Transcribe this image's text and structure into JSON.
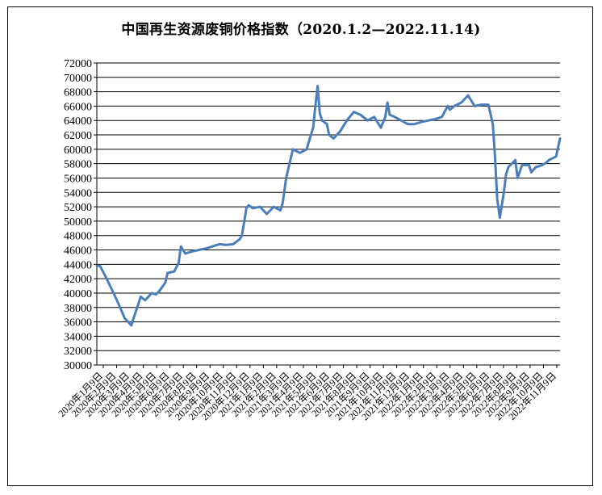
{
  "chart_data": {
    "type": "line",
    "title": "中国再生资源废铜价格指数（2020.1.2—2022.11.14)",
    "xlabel": "",
    "ylabel": "",
    "ylim": [
      30000,
      72000
    ],
    "yticks": [
      30000,
      32000,
      34000,
      36000,
      38000,
      40000,
      42000,
      44000,
      46000,
      48000,
      50000,
      52000,
      54000,
      56000,
      58000,
      60000,
      62000,
      64000,
      66000,
      68000,
      70000,
      72000
    ],
    "grid": true,
    "legend": "none",
    "line_color": "#4a7ebb",
    "x_tick_labels": [
      "2020年1月9日",
      "2020年2月9日",
      "2020年3月9日",
      "2020年4月9日",
      "2020年5月9日",
      "2020年6月9日",
      "2020年7月9日",
      "2020年8月9日",
      "2020年9月9日",
      "2020年10月9日",
      "2020年11月9日",
      "2020年12月9日",
      "2021年1月9日",
      "2021年2月9日",
      "2021年3月9日",
      "2021年4月9日",
      "2021年5月9日",
      "2021年6月9日",
      "2021年7月9日",
      "2021年8月9日",
      "2021年9月9日",
      "2021年10月9日",
      "2021年11月9日",
      "2021年12月9日",
      "2022年1月9日",
      "2022年2月9日",
      "2022年3月9日",
      "2022年4月9日",
      "2022年5月9日",
      "2022年6月9日",
      "2022年7月9日",
      "2022年8月9日",
      "2022年9月9日",
      "2022年10月9日",
      "2022年11月9日"
    ],
    "x": [
      "2020-01-02",
      "2020-01-09",
      "2020-01-20",
      "2020-02-05",
      "2020-02-20",
      "2020-03-05",
      "2020-03-20",
      "2020-03-25",
      "2020-04-05",
      "2020-04-10",
      "2020-04-20",
      "2020-05-05",
      "2020-05-15",
      "2020-05-25",
      "2020-06-05",
      "2020-06-10",
      "2020-06-25",
      "2020-07-05",
      "2020-07-10",
      "2020-07-15",
      "2020-07-20",
      "2020-08-05",
      "2020-08-20",
      "2020-09-05",
      "2020-09-20",
      "2020-10-05",
      "2020-10-20",
      "2020-11-05",
      "2020-11-20",
      "2020-11-25",
      "2020-12-05",
      "2020-12-10",
      "2020-12-20",
      "2021-01-05",
      "2021-01-20",
      "2021-02-05",
      "2021-02-20",
      "2021-02-25",
      "2021-03-05",
      "2021-03-20",
      "2021-04-05",
      "2021-04-20",
      "2021-05-05",
      "2021-05-10",
      "2021-05-15",
      "2021-05-20",
      "2021-05-25",
      "2021-06-05",
      "2021-06-10",
      "2021-06-20",
      "2021-07-05",
      "2021-07-20",
      "2021-08-05",
      "2021-08-20",
      "2021-09-05",
      "2021-09-20",
      "2021-10-05",
      "2021-10-15",
      "2021-10-20",
      "2021-10-25",
      "2021-11-05",
      "2021-11-20",
      "2021-12-05",
      "2021-12-20",
      "2022-01-05",
      "2022-01-20",
      "2022-02-05",
      "2022-02-20",
      "2022-03-05",
      "2022-03-10",
      "2022-03-20",
      "2022-04-05",
      "2022-04-20",
      "2022-05-05",
      "2022-05-20",
      "2022-06-05",
      "2022-06-15",
      "2022-06-20",
      "2022-06-25",
      "2022-07-01",
      "2022-07-10",
      "2022-07-15",
      "2022-07-20",
      "2022-08-05",
      "2022-08-10",
      "2022-08-20",
      "2022-09-05",
      "2022-09-10",
      "2022-09-20",
      "2022-10-05",
      "2022-10-15",
      "2022-10-20",
      "2022-11-05",
      "2022-11-14"
    ],
    "values": [
      43800,
      43800,
      42500,
      40500,
      38500,
      36500,
      35500,
      36500,
      38500,
      39500,
      39000,
      40000,
      39800,
      40500,
      41500,
      42800,
      43000,
      44200,
      46500,
      46000,
      45500,
      45800,
      46000,
      46200,
      46500,
      46800,
      46700,
      46800,
      47500,
      48000,
      51800,
      52200,
      51800,
      52000,
      51000,
      52000,
      51500,
      52500,
      56000,
      60000,
      59500,
      60000,
      63000,
      66000,
      68800,
      65000,
      64000,
      63500,
      62000,
      61500,
      62500,
      64000,
      65200,
      64800,
      64000,
      64500,
      63000,
      64500,
      66500,
      64800,
      64500,
      64000,
      63500,
      63500,
      63800,
      64000,
      64200,
      64500,
      66000,
      65500,
      66000,
      66500,
      67500,
      66000,
      66200,
      66200,
      63500,
      59000,
      53000,
      50500,
      54000,
      56500,
      57500,
      58500,
      56000,
      57800,
      57800,
      56800,
      57500,
      57800,
      58200,
      58500,
      59000,
      61500
    ]
  }
}
